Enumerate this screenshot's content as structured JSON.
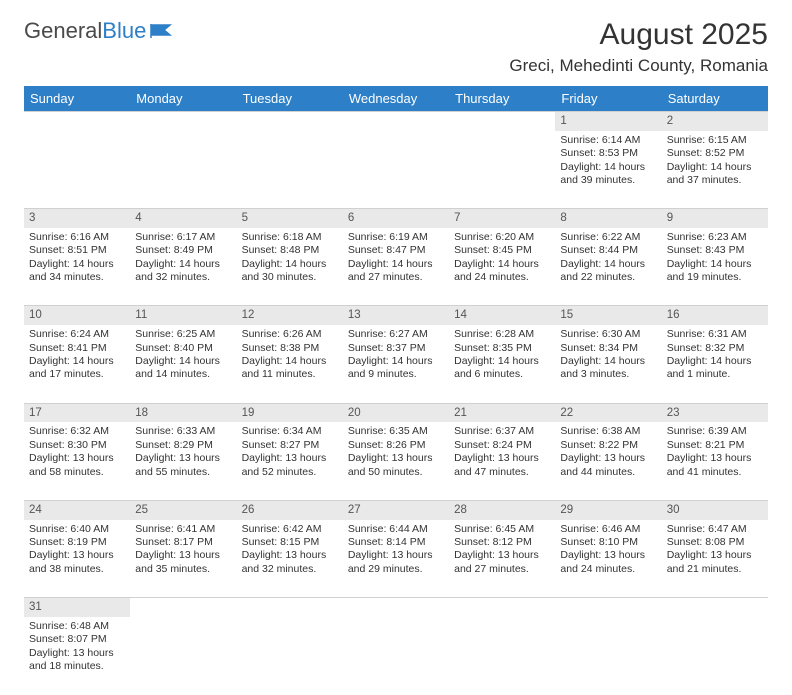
{
  "logo": {
    "text1": "General",
    "text2": "Blue",
    "icon_color": "#2d7fc7"
  },
  "title": "August 2025",
  "location": "Greci, Mehedinti County, Romania",
  "colors": {
    "header_bg": "#2d7fc7",
    "header_fg": "#ffffff",
    "daynum_bg": "#e9e9e9",
    "text": "#333333"
  },
  "day_headers": [
    "Sunday",
    "Monday",
    "Tuesday",
    "Wednesday",
    "Thursday",
    "Friday",
    "Saturday"
  ],
  "weeks": [
    {
      "nums": [
        "",
        "",
        "",
        "",
        "",
        "1",
        "2"
      ],
      "cells": [
        null,
        null,
        null,
        null,
        null,
        {
          "sunrise": "6:14 AM",
          "sunset": "8:53 PM",
          "daylight": "14 hours and 39 minutes."
        },
        {
          "sunrise": "6:15 AM",
          "sunset": "8:52 PM",
          "daylight": "14 hours and 37 minutes."
        }
      ]
    },
    {
      "nums": [
        "3",
        "4",
        "5",
        "6",
        "7",
        "8",
        "9"
      ],
      "cells": [
        {
          "sunrise": "6:16 AM",
          "sunset": "8:51 PM",
          "daylight": "14 hours and 34 minutes."
        },
        {
          "sunrise": "6:17 AM",
          "sunset": "8:49 PM",
          "daylight": "14 hours and 32 minutes."
        },
        {
          "sunrise": "6:18 AM",
          "sunset": "8:48 PM",
          "daylight": "14 hours and 30 minutes."
        },
        {
          "sunrise": "6:19 AM",
          "sunset": "8:47 PM",
          "daylight": "14 hours and 27 minutes."
        },
        {
          "sunrise": "6:20 AM",
          "sunset": "8:45 PM",
          "daylight": "14 hours and 24 minutes."
        },
        {
          "sunrise": "6:22 AM",
          "sunset": "8:44 PM",
          "daylight": "14 hours and 22 minutes."
        },
        {
          "sunrise": "6:23 AM",
          "sunset": "8:43 PM",
          "daylight": "14 hours and 19 minutes."
        }
      ]
    },
    {
      "nums": [
        "10",
        "11",
        "12",
        "13",
        "14",
        "15",
        "16"
      ],
      "cells": [
        {
          "sunrise": "6:24 AM",
          "sunset": "8:41 PM",
          "daylight": "14 hours and 17 minutes."
        },
        {
          "sunrise": "6:25 AM",
          "sunset": "8:40 PM",
          "daylight": "14 hours and 14 minutes."
        },
        {
          "sunrise": "6:26 AM",
          "sunset": "8:38 PM",
          "daylight": "14 hours and 11 minutes."
        },
        {
          "sunrise": "6:27 AM",
          "sunset": "8:37 PM",
          "daylight": "14 hours and 9 minutes."
        },
        {
          "sunrise": "6:28 AM",
          "sunset": "8:35 PM",
          "daylight": "14 hours and 6 minutes."
        },
        {
          "sunrise": "6:30 AM",
          "sunset": "8:34 PM",
          "daylight": "14 hours and 3 minutes."
        },
        {
          "sunrise": "6:31 AM",
          "sunset": "8:32 PM",
          "daylight": "14 hours and 1 minute."
        }
      ]
    },
    {
      "nums": [
        "17",
        "18",
        "19",
        "20",
        "21",
        "22",
        "23"
      ],
      "cells": [
        {
          "sunrise": "6:32 AM",
          "sunset": "8:30 PM",
          "daylight": "13 hours and 58 minutes."
        },
        {
          "sunrise": "6:33 AM",
          "sunset": "8:29 PM",
          "daylight": "13 hours and 55 minutes."
        },
        {
          "sunrise": "6:34 AM",
          "sunset": "8:27 PM",
          "daylight": "13 hours and 52 minutes."
        },
        {
          "sunrise": "6:35 AM",
          "sunset": "8:26 PM",
          "daylight": "13 hours and 50 minutes."
        },
        {
          "sunrise": "6:37 AM",
          "sunset": "8:24 PM",
          "daylight": "13 hours and 47 minutes."
        },
        {
          "sunrise": "6:38 AM",
          "sunset": "8:22 PM",
          "daylight": "13 hours and 44 minutes."
        },
        {
          "sunrise": "6:39 AM",
          "sunset": "8:21 PM",
          "daylight": "13 hours and 41 minutes."
        }
      ]
    },
    {
      "nums": [
        "24",
        "25",
        "26",
        "27",
        "28",
        "29",
        "30"
      ],
      "cells": [
        {
          "sunrise": "6:40 AM",
          "sunset": "8:19 PM",
          "daylight": "13 hours and 38 minutes."
        },
        {
          "sunrise": "6:41 AM",
          "sunset": "8:17 PM",
          "daylight": "13 hours and 35 minutes."
        },
        {
          "sunrise": "6:42 AM",
          "sunset": "8:15 PM",
          "daylight": "13 hours and 32 minutes."
        },
        {
          "sunrise": "6:44 AM",
          "sunset": "8:14 PM",
          "daylight": "13 hours and 29 minutes."
        },
        {
          "sunrise": "6:45 AM",
          "sunset": "8:12 PM",
          "daylight": "13 hours and 27 minutes."
        },
        {
          "sunrise": "6:46 AM",
          "sunset": "8:10 PM",
          "daylight": "13 hours and 24 minutes."
        },
        {
          "sunrise": "6:47 AM",
          "sunset": "8:08 PM",
          "daylight": "13 hours and 21 minutes."
        }
      ]
    },
    {
      "nums": [
        "31",
        "",
        "",
        "",
        "",
        "",
        ""
      ],
      "cells": [
        {
          "sunrise": "6:48 AM",
          "sunset": "8:07 PM",
          "daylight": "13 hours and 18 minutes."
        },
        null,
        null,
        null,
        null,
        null,
        null
      ]
    }
  ],
  "labels": {
    "sunrise": "Sunrise: ",
    "sunset": "Sunset: ",
    "daylight": "Daylight: "
  }
}
